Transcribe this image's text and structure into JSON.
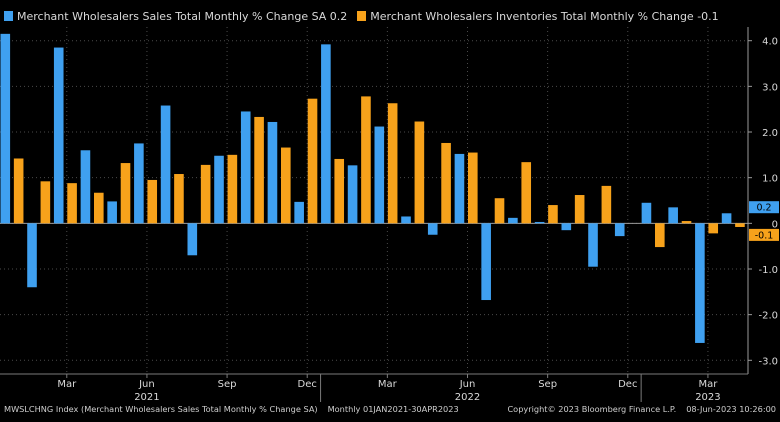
{
  "chart_data": {
    "type": "bar",
    "categories": [
      "Jan 2021",
      "Feb 2021",
      "Mar 2021",
      "Apr 2021",
      "May 2021",
      "Jun 2021",
      "Jul 2021",
      "Aug 2021",
      "Sep 2021",
      "Oct 2021",
      "Nov 2021",
      "Dec 2021",
      "Jan 2022",
      "Feb 2022",
      "Mar 2022",
      "Apr 2022",
      "May 2022",
      "Jun 2022",
      "Jul 2022",
      "Aug 2022",
      "Sep 2022",
      "Oct 2022",
      "Nov 2022",
      "Dec 2022",
      "Jan 2023",
      "Feb 2023",
      "Mar 2023",
      "Apr 2023"
    ],
    "series": [
      {
        "name": "Merchant Wholesalers Sales Total Monthly % Change SA 0.2",
        "color": "#3fa0f0",
        "values": [
          4.15,
          -1.4,
          3.85,
          1.6,
          0.48,
          1.75,
          2.58,
          -0.7,
          1.48,
          2.45,
          2.22,
          0.47,
          3.92,
          1.27,
          2.12,
          0.15,
          -0.25,
          1.52,
          -1.68,
          0.12,
          0.03,
          -0.15,
          -0.95,
          -0.28,
          0.45,
          0.35,
          -2.62,
          0.22
        ]
      },
      {
        "name": "Merchant Wholesalers Inventories Total Monthly % Change -0.1",
        "color": "#f7a21b",
        "values": [
          1.42,
          0.92,
          0.88,
          0.67,
          1.32,
          0.95,
          1.08,
          1.28,
          1.5,
          2.33,
          1.66,
          2.73,
          1.41,
          2.78,
          2.63,
          2.23,
          1.76,
          1.55,
          0.55,
          1.34,
          0.4,
          0.62,
          0.82,
          0.0,
          -0.52,
          0.05,
          -0.22,
          -0.08
        ]
      }
    ],
    "x_tick_labels": [
      "Mar",
      "Jun",
      "Sep",
      "Dec",
      "Mar",
      "Jun",
      "Sep",
      "Dec",
      "Mar"
    ],
    "x_tick_months": [
      2,
      5,
      8,
      11,
      14,
      17,
      20,
      23,
      26
    ],
    "year_labels": [
      {
        "label": "2021",
        "center": 5.5
      },
      {
        "label": "2022",
        "center": 17.5
      },
      {
        "label": "2023",
        "center": 26.5
      }
    ],
    "year_dividers": [
      12,
      24
    ],
    "y_ticks": [
      "4.0",
      "3.0",
      "2.0",
      "1.0",
      "0",
      "-1.0",
      "-2.0",
      "-3.0"
    ],
    "y_tick_values": [
      4,
      3,
      2,
      1,
      0,
      -1,
      -2,
      -3
    ],
    "ylim": [
      -3.3,
      4.3
    ],
    "last_value_labels": [
      {
        "text": "0.2",
        "value": 0.2,
        "color": "#3fa0f0"
      },
      {
        "text": "-0.1",
        "value": -0.1,
        "color": "#f7a21b"
      }
    ],
    "grid": "dotted horizontal and vertical",
    "legend_position": "top-left"
  },
  "legend": {
    "sales_label": "Merchant Wholesalers Sales Total Monthly % Change SA 0.2",
    "inventories_label": "Merchant Wholesalers Inventories Total Monthly % Change -0.1"
  },
  "footer": {
    "source": "MWSLCHNG Index (Merchant Wholesalers Sales Total Monthly % Change SA)",
    "period": "Monthly 01JAN2021-30APR2023",
    "copyright": "Copyright© 2023 Bloomberg Finance L.P.",
    "timestamp": "08-Jun-2023 10:26:00"
  },
  "colors": {
    "sales": "#3fa0f0",
    "inventories": "#f7a21b",
    "background": "#000000"
  }
}
